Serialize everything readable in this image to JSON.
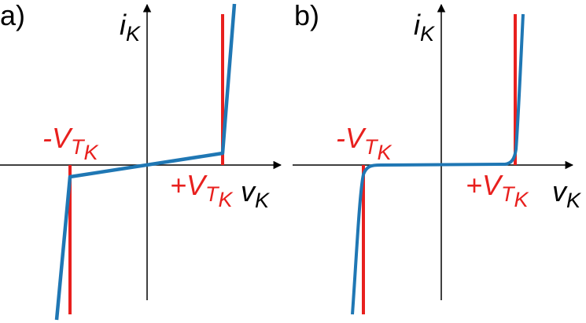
{
  "panels": [
    {
      "label": "a)",
      "y_axis": {
        "symbol": "i",
        "subscript": "K"
      },
      "x_axis": {
        "symbol": "v",
        "subscript": "K"
      },
      "neg_threshold": {
        "symbol": "-V",
        "subscript": "T",
        "subsubscript": "K"
      },
      "pos_threshold": {
        "symbol": "+V",
        "subscript": "T",
        "subsubscript": "K"
      }
    },
    {
      "label": "b)",
      "y_axis": {
        "symbol": "i",
        "subscript": "K"
      },
      "x_axis": {
        "symbol": "v",
        "subscript": "K"
      },
      "neg_threshold": {
        "symbol": "-V",
        "subscript": "T",
        "subsubscript": "K"
      },
      "pos_threshold": {
        "symbol": "+V",
        "subscript": "T",
        "subsubscript": "K"
      }
    }
  ]
}
